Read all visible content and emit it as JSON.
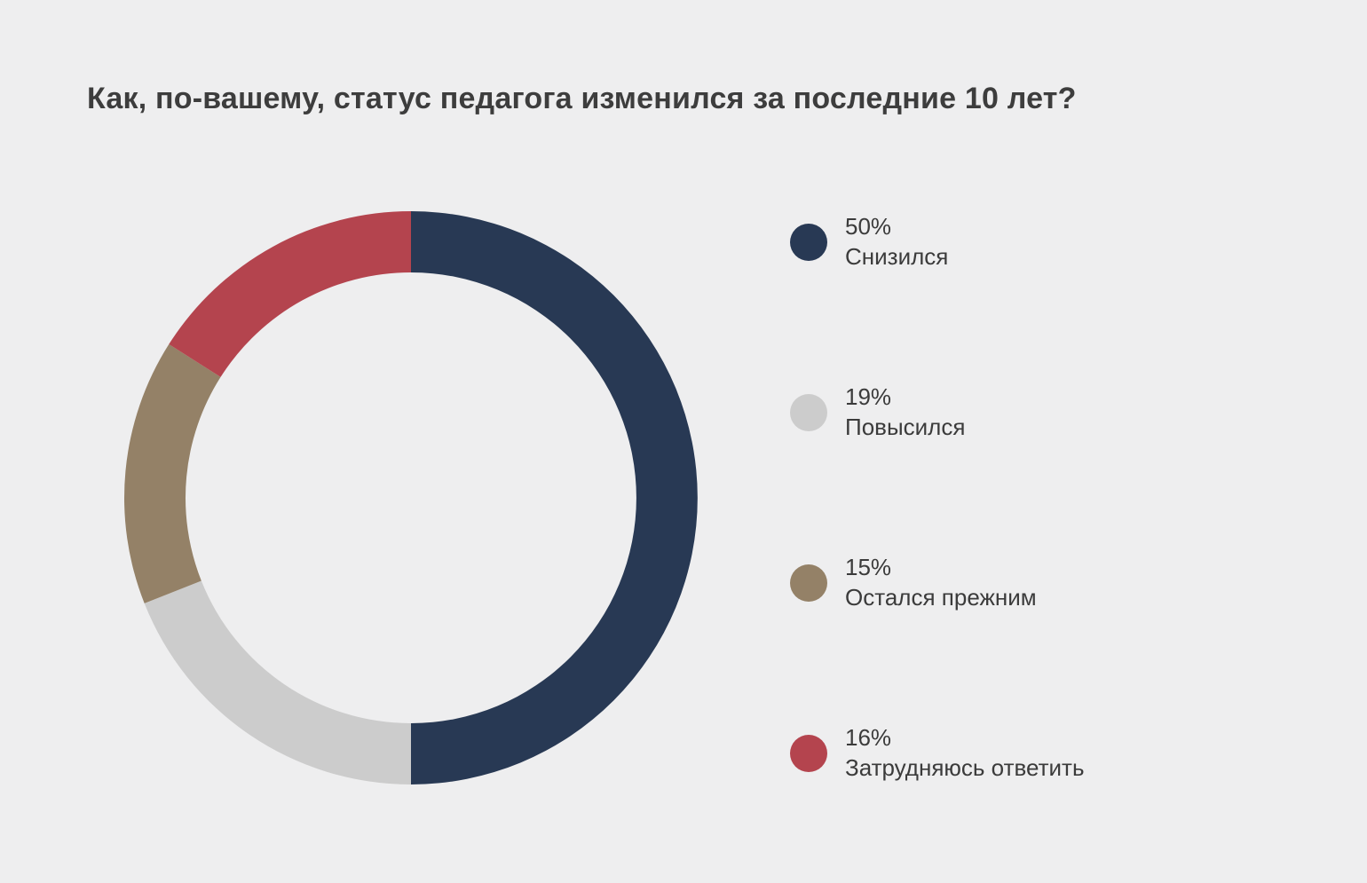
{
  "chart_data": {
    "type": "pie",
    "title": "Как, по-вашему, статус педагога изменился за последние 10 лет?",
    "categories": [
      "Снизился",
      "Повысился",
      "Остался прежним",
      "Затрудняюсь ответить"
    ],
    "values": [
      50,
      19,
      15,
      16
    ],
    "value_labels": [
      "50%",
      "19%",
      "15%",
      "16%"
    ],
    "colors": [
      "#283954",
      "#cccccc",
      "#948167",
      "#b4444e"
    ],
    "donut": true,
    "legend_position": "right"
  }
}
